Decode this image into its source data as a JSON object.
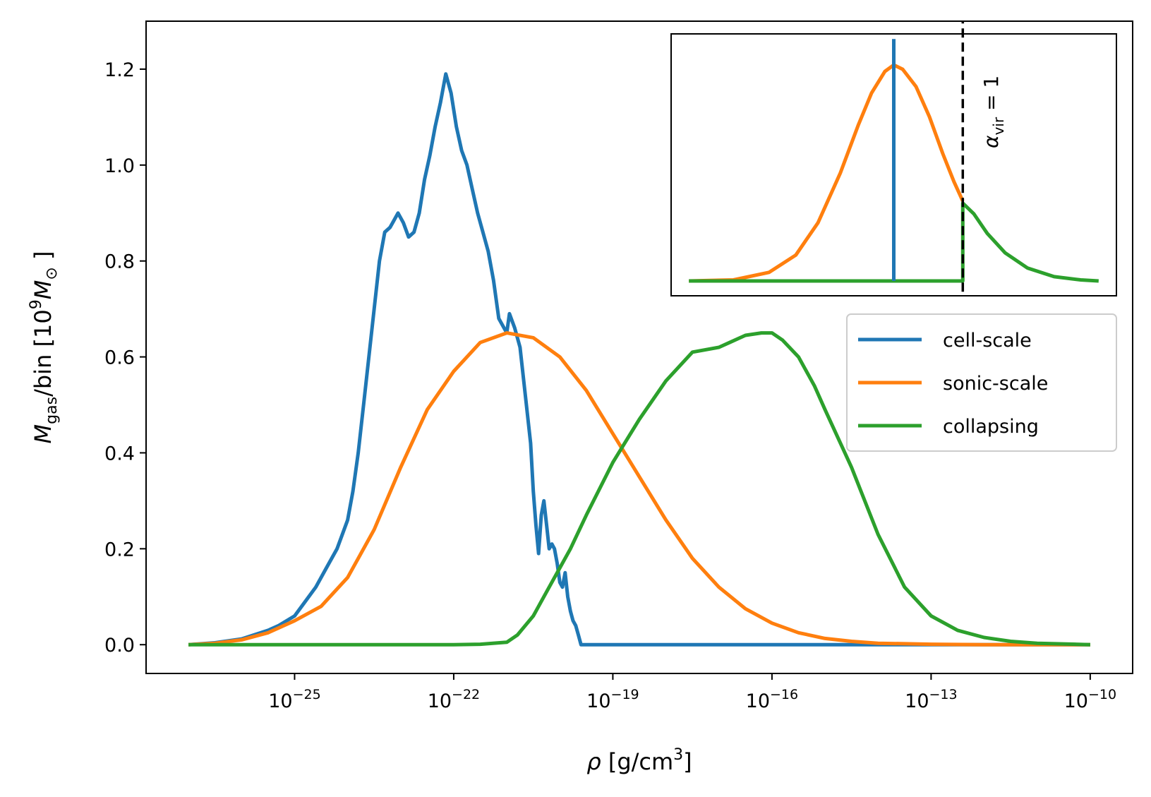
{
  "chart_data": [
    {
      "type": "line",
      "role": "main",
      "title": "",
      "xlabel": "ρ [g/cm³]",
      "xlabel_parts": {
        "symbol": "ρ",
        "unit_pre": "[g/cm",
        "unit_exp": "3",
        "unit_post": "]"
      },
      "ylabel": "M_gas/bin [10^9 M_⊙]",
      "ylabel_parts": {
        "m": "M",
        "sub": "gas",
        "mid": "/bin [10",
        "exp": "9",
        "m2": "M",
        "sun": "⊙",
        "end": "]"
      },
      "xscale": "log",
      "xlim_log10": [
        -27.8,
        -9.2
      ],
      "ylim": [
        -0.06,
        1.3
      ],
      "xticks": [
        {
          "log10": -25,
          "base": "10",
          "exp": "−25"
        },
        {
          "log10": -22,
          "base": "10",
          "exp": "−22"
        },
        {
          "log10": -19,
          "base": "10",
          "exp": "−19"
        },
        {
          "log10": -16,
          "base": "10",
          "exp": "−16"
        },
        {
          "log10": -13,
          "base": "10",
          "exp": "−13"
        },
        {
          "log10": -10,
          "base": "10",
          "exp": "−10"
        }
      ],
      "yticks": [
        {
          "value": 0.0,
          "label": "0.0"
        },
        {
          "value": 0.2,
          "label": "0.2"
        },
        {
          "value": 0.4,
          "label": "0.4"
        },
        {
          "value": 0.6,
          "label": "0.6"
        },
        {
          "value": 0.8,
          "label": "0.8"
        },
        {
          "value": 1.0,
          "label": "1.0"
        },
        {
          "value": 1.2,
          "label": "1.2"
        }
      ],
      "legend": {
        "position": "right-middle",
        "entries": [
          "cell-scale",
          "sonic-scale",
          "collapsing"
        ]
      },
      "series": [
        {
          "name": "cell-scale",
          "color": "#1f77b4",
          "x_log10": [
            -27.0,
            -26.5,
            -26.0,
            -25.5,
            -25.3,
            -25.0,
            -24.8,
            -24.6,
            -24.4,
            -24.2,
            -24.0,
            -23.9,
            -23.8,
            -23.7,
            -23.6,
            -23.5,
            -23.4,
            -23.3,
            -23.2,
            -23.15,
            -23.05,
            -22.95,
            -22.85,
            -22.75,
            -22.65,
            -22.55,
            -22.45,
            -22.35,
            -22.25,
            -22.15,
            -22.05,
            -21.95,
            -21.85,
            -21.75,
            -21.65,
            -21.55,
            -21.45,
            -21.35,
            -21.25,
            -21.15,
            -21.0,
            -20.95,
            -20.85,
            -20.75,
            -20.65,
            -20.55,
            -20.5,
            -20.45,
            -20.4,
            -20.35,
            -20.3,
            -20.25,
            -20.2,
            -20.15,
            -20.1,
            -20.05,
            -20.0,
            -19.95,
            -19.9,
            -19.85,
            -19.8,
            -19.75,
            -19.7,
            -19.65,
            -19.6,
            -19.5,
            -19.0,
            -16.0,
            -13.0,
            -10.0
          ],
          "values": [
            0.0,
            0.004,
            0.012,
            0.03,
            0.04,
            0.06,
            0.09,
            0.12,
            0.16,
            0.2,
            0.26,
            0.32,
            0.4,
            0.5,
            0.6,
            0.7,
            0.8,
            0.86,
            0.87,
            0.88,
            0.9,
            0.88,
            0.85,
            0.86,
            0.9,
            0.97,
            1.02,
            1.08,
            1.13,
            1.19,
            1.15,
            1.08,
            1.03,
            1.0,
            0.95,
            0.9,
            0.86,
            0.82,
            0.76,
            0.68,
            0.65,
            0.69,
            0.66,
            0.62,
            0.52,
            0.42,
            0.32,
            0.25,
            0.19,
            0.27,
            0.3,
            0.25,
            0.2,
            0.21,
            0.2,
            0.17,
            0.13,
            0.12,
            0.15,
            0.1,
            0.07,
            0.05,
            0.04,
            0.02,
            0.0,
            0.0,
            0.0,
            0.0,
            0.0,
            0.0
          ]
        },
        {
          "name": "sonic-scale",
          "color": "#ff7f0e",
          "x_log10": [
            -27.0,
            -26.5,
            -26.0,
            -25.5,
            -25.0,
            -24.5,
            -24.0,
            -23.5,
            -23.0,
            -22.5,
            -22.0,
            -21.5,
            -21.0,
            -20.5,
            -20.0,
            -19.5,
            -19.0,
            -18.5,
            -18.0,
            -17.5,
            -17.0,
            -16.5,
            -16.0,
            -15.5,
            -15.0,
            -14.5,
            -14.0,
            -13.0,
            -12.0,
            -11.0,
            -10.0
          ],
          "values": [
            0.0,
            0.003,
            0.01,
            0.025,
            0.05,
            0.08,
            0.14,
            0.24,
            0.37,
            0.49,
            0.57,
            0.63,
            0.65,
            0.64,
            0.6,
            0.53,
            0.44,
            0.35,
            0.26,
            0.18,
            0.12,
            0.075,
            0.045,
            0.025,
            0.013,
            0.007,
            0.003,
            0.001,
            0.0,
            0.0,
            0.0
          ]
        },
        {
          "name": "collapsing",
          "color": "#2ca02c",
          "x_log10": [
            -27.0,
            -24.0,
            -22.0,
            -21.5,
            -21.0,
            -20.8,
            -20.5,
            -20.2,
            -20.0,
            -19.8,
            -19.5,
            -19.0,
            -18.5,
            -18.0,
            -17.5,
            -17.0,
            -16.8,
            -16.5,
            -16.2,
            -16.0,
            -15.8,
            -15.5,
            -15.2,
            -15.0,
            -14.5,
            -14.0,
            -13.5,
            -13.0,
            -12.5,
            -12.0,
            -11.5,
            -11.0,
            -10.0
          ],
          "values": [
            0.0,
            0.0,
            0.0,
            0.001,
            0.005,
            0.02,
            0.06,
            0.12,
            0.16,
            0.2,
            0.27,
            0.38,
            0.47,
            0.55,
            0.61,
            0.62,
            0.63,
            0.645,
            0.65,
            0.65,
            0.635,
            0.6,
            0.54,
            0.49,
            0.37,
            0.23,
            0.12,
            0.06,
            0.03,
            0.015,
            0.007,
            0.003,
            0.0
          ]
        }
      ]
    },
    {
      "type": "line",
      "role": "inset",
      "xlim": [
        0,
        1
      ],
      "ylim": [
        0,
        1
      ],
      "annotation": {
        "symbol": "α",
        "sub": "vir",
        "rest": " = 1"
      },
      "series": [
        {
          "name": "cell-scale",
          "color": "#1f77b4",
          "x": [
            0.5,
            0.5
          ],
          "values": [
            0.0,
            1.12
          ]
        },
        {
          "name": "sonic-scale",
          "color": "#ff7f0e",
          "x": [
            0.04,
            0.14,
            0.22,
            0.28,
            0.33,
            0.38,
            0.42,
            0.45,
            0.48,
            0.5,
            0.52,
            0.55,
            0.58,
            0.61,
            0.635,
            0.655
          ],
          "values": [
            0.0,
            0.005,
            0.04,
            0.12,
            0.27,
            0.5,
            0.72,
            0.87,
            0.97,
            1.0,
            0.98,
            0.9,
            0.76,
            0.59,
            0.46,
            0.37
          ]
        },
        {
          "name": "collapsing",
          "color": "#2ca02c",
          "x": [
            0.04,
            0.655,
            0.655,
            0.68,
            0.71,
            0.75,
            0.8,
            0.86,
            0.92,
            0.96
          ],
          "values": [
            0.0,
            0.0,
            0.36,
            0.31,
            0.22,
            0.13,
            0.06,
            0.02,
            0.005,
            0.0
          ]
        },
        {
          "name": "alpha_vir",
          "color": "#000000",
          "dashed": true,
          "x": [
            0.655,
            0.655
          ],
          "values": [
            -0.05,
            1.2
          ]
        }
      ]
    }
  ]
}
